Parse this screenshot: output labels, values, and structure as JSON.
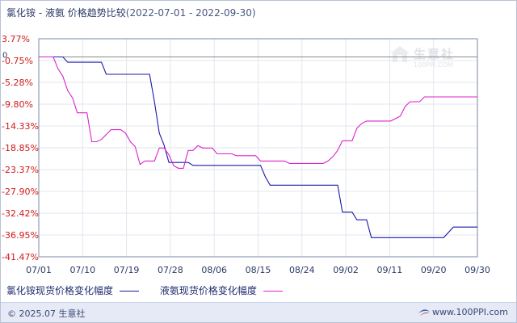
{
  "title": {
    "main": "氯化铵 - 液氨 价格趋势比较",
    "date_range": "(2022-07-01 - 2022-09-30)"
  },
  "watermark": {
    "text": "生意社",
    "sub": "100PPI.COM"
  },
  "footer": {
    "copyright": "© 2025.07 生意社",
    "site": "www.100PPI.com"
  },
  "colors": {
    "series_1": "#1a1aaa",
    "series_2": "#dd22cc",
    "axis": "#7a8aa8",
    "grid": "#e2e6ee",
    "ytick_text": "#d01818",
    "xtick_text": "#2b3a66"
  },
  "chart_data": {
    "type": "line",
    "title": "氯化铵 - 液氨 价格趋势比较",
    "xlabel": "",
    "ylabel": "",
    "x_ticks": [
      "07/01",
      "07/10",
      "07/19",
      "07/28",
      "08/06",
      "08/15",
      "08/24",
      "09/02",
      "09/11",
      "09/20",
      "09/30"
    ],
    "y_ticks": [
      "3.77%",
      "-0.75%",
      "-5.28%",
      "-9.80%",
      "-14.33%",
      "-18.85%",
      "-23.37%",
      "-27.90%",
      "-32.42%",
      "-36.95%",
      "-41.47%"
    ],
    "y_extra_tick": "0",
    "ylim": [
      -41.47,
      3.77
    ],
    "xlim": [
      0,
      91
    ],
    "grid": true,
    "legend_position": "bottom",
    "series": [
      {
        "name": "氯化铵现货价格变化幅度",
        "points": [
          [
            0,
            0
          ],
          [
            5,
            0
          ],
          [
            6,
            -1.1
          ],
          [
            13,
            -1.1
          ],
          [
            14,
            -3.6
          ],
          [
            23,
            -3.6
          ],
          [
            24,
            -9.3
          ],
          [
            25,
            -15.8
          ],
          [
            26,
            -18.3
          ],
          [
            27,
            -21.9
          ],
          [
            31,
            -21.9
          ],
          [
            32,
            -22.5
          ],
          [
            46,
            -22.5
          ],
          [
            47,
            -24.9
          ],
          [
            48,
            -26.6
          ],
          [
            62,
            -26.6
          ],
          [
            63,
            -32.2
          ],
          [
            65,
            -32.2
          ],
          [
            66,
            -33.8
          ],
          [
            68,
            -33.8
          ],
          [
            69,
            -37.5
          ],
          [
            84,
            -37.5
          ],
          [
            86,
            -35.3
          ],
          [
            91,
            -35.3
          ]
        ]
      },
      {
        "name": "液氨现货价格变化幅度",
        "points": [
          [
            0,
            0
          ],
          [
            3,
            0
          ],
          [
            4,
            -2.5
          ],
          [
            5,
            -4.0
          ],
          [
            6,
            -7.0
          ],
          [
            7,
            -8.5
          ],
          [
            8,
            -11.6
          ],
          [
            10,
            -11.6
          ],
          [
            11,
            -17.6
          ],
          [
            12,
            -17.6
          ],
          [
            13,
            -17.1
          ],
          [
            14,
            -16.1
          ],
          [
            15,
            -15.1
          ],
          [
            17,
            -15.1
          ],
          [
            18,
            -15.8
          ],
          [
            19,
            -17.6
          ],
          [
            20,
            -18.6
          ],
          [
            21,
            -22.3
          ],
          [
            22,
            -21.6
          ],
          [
            24,
            -21.6
          ],
          [
            25,
            -18.9
          ],
          [
            26,
            -18.9
          ],
          [
            27,
            -20.3
          ],
          [
            28,
            -22.6
          ],
          [
            29,
            -23.1
          ],
          [
            30,
            -23.1
          ],
          [
            31,
            -19.4
          ],
          [
            32,
            -19.4
          ],
          [
            33,
            -18.4
          ],
          [
            34,
            -18.9
          ],
          [
            36,
            -18.9
          ],
          [
            37,
            -20.1
          ],
          [
            40,
            -20.1
          ],
          [
            41,
            -20.5
          ],
          [
            45,
            -20.5
          ],
          [
            46,
            -21.6
          ],
          [
            51,
            -21.6
          ],
          [
            52,
            -22.1
          ],
          [
            59,
            -22.1
          ],
          [
            60,
            -21.6
          ],
          [
            61,
            -20.7
          ],
          [
            62,
            -19.4
          ],
          [
            63,
            -17.4
          ],
          [
            65,
            -17.4
          ],
          [
            66,
            -14.8
          ],
          [
            67,
            -13.8
          ],
          [
            68,
            -13.3
          ],
          [
            73,
            -13.3
          ],
          [
            75,
            -12.3
          ],
          [
            76,
            -10.3
          ],
          [
            77,
            -9.3
          ],
          [
            79,
            -9.3
          ],
          [
            80,
            -8.3
          ],
          [
            91,
            -8.3
          ]
        ]
      }
    ]
  }
}
